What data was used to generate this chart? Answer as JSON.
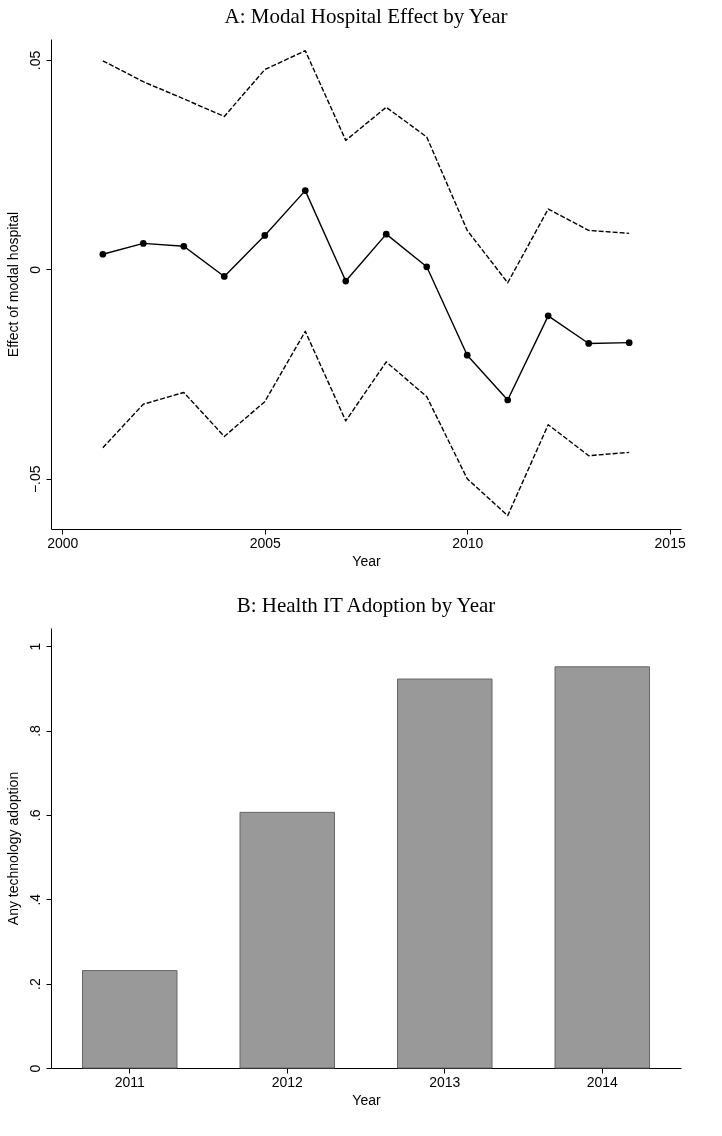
{
  "chart_data": [
    {
      "type": "line",
      "title": "A: Modal Hospital Effect by Year",
      "xlabel": "Year",
      "ylabel": "Effect of modal hospital",
      "x": [
        2001,
        2002,
        2003,
        2004,
        2005,
        2006,
        2007,
        2008,
        2009,
        2010,
        2011,
        2012,
        2013,
        2014
      ],
      "xlim": [
        1999.72,
        2015.28
      ],
      "xticks": [
        2000,
        2005,
        2010,
        2015
      ],
      "ylim": [
        -0.062,
        0.055
      ],
      "yticks": [
        {
          "value": -0.05,
          "label": "−.05"
        },
        0,
        {
          "value": 0.05,
          "label": ".05"
        }
      ],
      "grid": false,
      "series": [
        {
          "color": "#000000",
          "marker": "circle",
          "line_style": "solid",
          "values": [
            0.0036,
            0.0062,
            0.0055,
            -0.0017,
            0.0081,
            0.0188,
            -0.0028,
            0.0084,
            0.0006,
            -0.0205,
            -0.0312,
            -0.0111,
            -0.0177,
            -0.0175
          ]
        },
        {
          "color": "#000000",
          "marker": "none",
          "line_style": "dashed",
          "values": [
            0.0498,
            0.0448,
            0.0407,
            0.0365,
            0.0477,
            0.0522,
            0.0308,
            0.0387,
            0.0316,
            0.0093,
            -0.0032,
            0.0144,
            0.0093,
            0.0086
          ]
        },
        {
          "color": "#000000",
          "marker": "none",
          "line_style": "dashed",
          "values": [
            -0.0426,
            -0.0322,
            -0.0294,
            -0.0399,
            -0.0316,
            -0.0148,
            -0.0362,
            -0.0221,
            -0.0304,
            -0.05,
            -0.0588,
            -0.0371,
            -0.0445,
            -0.0437
          ]
        }
      ]
    },
    {
      "type": "bar",
      "title": "B: Health IT Adoption by Year",
      "xlabel": "Year",
      "ylabel": "Any technology adoption",
      "categories": [
        "2011",
        "2012",
        "2013",
        "2014"
      ],
      "values": [
        0.231,
        0.606,
        0.922,
        0.951
      ],
      "color": "#999999",
      "ylim": [
        0,
        1.043
      ],
      "yticks": [
        0,
        {
          "value": 0.2,
          "label": ".2"
        },
        {
          "value": 0.4,
          "label": ".4"
        },
        {
          "value": 0.6,
          "label": ".6"
        },
        {
          "value": 0.8,
          "label": ".8"
        },
        1
      ],
      "grid": false
    }
  ]
}
